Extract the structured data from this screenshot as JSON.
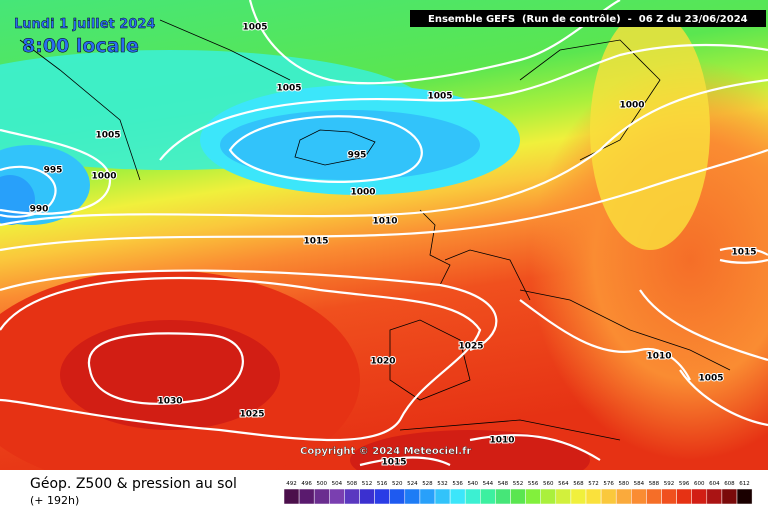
{
  "header": {
    "date": "Lundi 1 juillet 2024",
    "hour": "8:00 locale",
    "model": "Ensemble GEFS  (Run de contrôle)  -  06 Z du 23/06/2024"
  },
  "isobar_labels": [
    "1005",
    "1005",
    "1005",
    "1005",
    "995",
    "1000",
    "990",
    "995",
    "1000",
    "1010",
    "1015",
    "1000",
    "1015",
    "1025",
    "1020",
    "1010",
    "1005",
    "1030",
    "1025",
    "1010",
    "1015"
  ],
  "copyright": "Copyright © 2024 Meteociel.fr",
  "footer": {
    "title": "Géop. Z500 & pression au sol",
    "lead": "(+ 192h)"
  },
  "scale": [
    {
      "label": "492",
      "color": "#4b0f4b"
    },
    {
      "label": "496",
      "color": "#5a1a6e"
    },
    {
      "label": "500",
      "color": "#6a2d8f"
    },
    {
      "label": "504",
      "color": "#7a3fb0"
    },
    {
      "label": "508",
      "color": "#5a38c0"
    },
    {
      "label": "512",
      "color": "#3b30d0"
    },
    {
      "label": "516",
      "color": "#2a3ce6"
    },
    {
      "label": "520",
      "color": "#1e5af0"
    },
    {
      "label": "524",
      "color": "#1e7cf5"
    },
    {
      "label": "528",
      "color": "#28a0fa"
    },
    {
      "label": "532",
      "color": "#32c3fa"
    },
    {
      "label": "536",
      "color": "#3ce6fa"
    },
    {
      "label": "540",
      "color": "#3cf0d2"
    },
    {
      "label": "544",
      "color": "#3cf0a0"
    },
    {
      "label": "548",
      "color": "#46e678"
    },
    {
      "label": "552",
      "color": "#5ae650"
    },
    {
      "label": "556",
      "color": "#82f03c"
    },
    {
      "label": "560",
      "color": "#aaf03c"
    },
    {
      "label": "564",
      "color": "#d2f03c"
    },
    {
      "label": "568",
      "color": "#f0f03c"
    },
    {
      "label": "572",
      "color": "#fae13c"
    },
    {
      "label": "576",
      "color": "#fac83c"
    },
    {
      "label": "580",
      "color": "#faaa3c"
    },
    {
      "label": "584",
      "color": "#fa8c32"
    },
    {
      "label": "588",
      "color": "#f56e28"
    },
    {
      "label": "592",
      "color": "#f0501e"
    },
    {
      "label": "596",
      "color": "#e63214"
    },
    {
      "label": "600",
      "color": "#d21e14"
    },
    {
      "label": "604",
      "color": "#aa1414"
    },
    {
      "label": "608",
      "color": "#7a0a0a"
    },
    {
      "label": "612",
      "color": "#1a0000"
    }
  ]
}
